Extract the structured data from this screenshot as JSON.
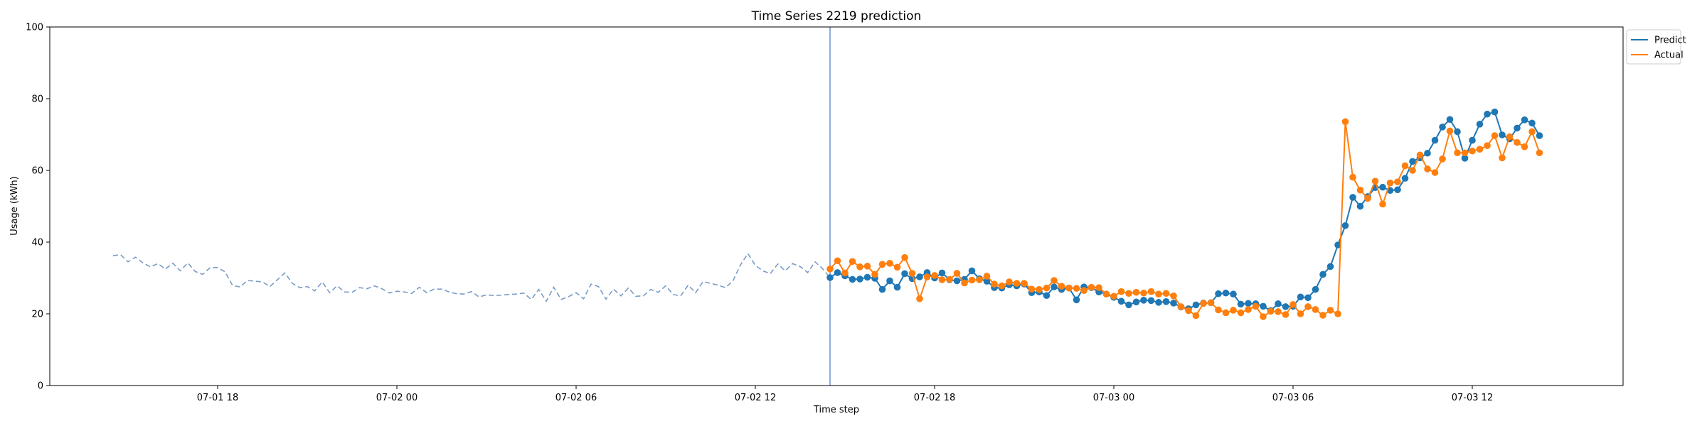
{
  "chart_data": {
    "type": "line",
    "title": "Time Series 2219 prediction",
    "xlabel": "Time step",
    "ylabel": "Usage (kWh)",
    "ylim": [
      0,
      100
    ],
    "yticks": [
      0,
      20,
      40,
      60,
      80,
      100
    ],
    "x_unit": "hours",
    "x_range": [
      -16.75,
      36.0
    ],
    "xticks": [
      {
        "value": 0,
        "label": "07-01 18"
      },
      {
        "value": 6,
        "label": "07-02 00"
      },
      {
        "value": 12,
        "label": "07-02 06"
      },
      {
        "value": 18,
        "label": "07-02 12"
      },
      {
        "value": 24,
        "label": "07-02 18"
      },
      {
        "value": 30,
        "label": "07-03 00"
      },
      {
        "value": 36,
        "label": "07-03 06"
      },
      {
        "value": 42,
        "label": "07-03 12"
      }
    ],
    "step_hours": 0.25,
    "forecast_start_hour": 20.5,
    "legend": {
      "placement": "upper right outside",
      "entries": [
        "Predict",
        "Actual"
      ]
    },
    "colors": {
      "predict": "#1f77b4",
      "actual": "#ff7f0e",
      "history": "#7a9cc6",
      "divider": "#6a8fcb"
    },
    "history_values": [
      36.2,
      36.5,
      34.5,
      35.8,
      34.2,
      33.1,
      34.0,
      32.5,
      34.1,
      32.0,
      34.2,
      31.8,
      31.0,
      32.9,
      32.9,
      31.7,
      27.9,
      27.5,
      29.3,
      29.1,
      28.9,
      27.6,
      29.5,
      31.4,
      28.5,
      27.3,
      27.6,
      26.4,
      28.9,
      25.9,
      27.8,
      26.1,
      26.0,
      27.3,
      27.0,
      27.8,
      27.0,
      25.8,
      26.3,
      26.1,
      25.7,
      27.4,
      25.9,
      26.9,
      26.9,
      26.1,
      25.6,
      25.5,
      26.2,
      24.7,
      25.3,
      25.1,
      25.2,
      25.4,
      25.5,
      25.8,
      24.0,
      26.8,
      23.5,
      27.4,
      24.0,
      24.8,
      25.9,
      24.2,
      28.3,
      27.6,
      24.1,
      26.9,
      25.0,
      27.2,
      24.9,
      25.0,
      26.8,
      26.0,
      27.8,
      25.4,
      25.0,
      28.0,
      25.9,
      29.0,
      28.5,
      28.0,
      27.3,
      29.2,
      33.6,
      36.8,
      33.5,
      32.0,
      31.2,
      33.9,
      32.0,
      34.0,
      33.2,
      31.5,
      34.5,
      32.6
    ],
    "series": [
      {
        "name": "Predict",
        "values": [
          30.1,
          31.5,
          30.6,
          29.6,
          29.7,
          30.2,
          29.9,
          26.8,
          29.2,
          27.4,
          31.2,
          29.8,
          30.3,
          31.5,
          30.0,
          31.4,
          29.5,
          29.2,
          29.6,
          32.0,
          29.8,
          29.1,
          27.3,
          27.2,
          28.1,
          27.8,
          28.3,
          25.9,
          26.1,
          25.1,
          27.5,
          26.8,
          27.2,
          23.9,
          27.5,
          27.3,
          26.1,
          25.5,
          24.6,
          23.5,
          22.5,
          23.3,
          23.8,
          23.7,
          23.2,
          23.4,
          23.0,
          21.9,
          21.4,
          22.5,
          23.0,
          23.1,
          25.6,
          25.8,
          25.5,
          22.7,
          22.9,
          22.8,
          22.1,
          20.9,
          22.8,
          22.0,
          22.1,
          24.7,
          24.5,
          26.8,
          31.0,
          33.2,
          39.2,
          44.6,
          52.5,
          50.0,
          52.7,
          55.2,
          55.3,
          54.4,
          54.6,
          57.8,
          62.5,
          63.5,
          64.8,
          68.4,
          72.1,
          74.2,
          70.8,
          63.4,
          68.4,
          72.9,
          75.7,
          76.3,
          69.9,
          68.8,
          71.8,
          74.1,
          73.2,
          69.7
        ]
      },
      {
        "name": "Actual",
        "values": [
          32.5,
          34.8,
          31.4,
          34.6,
          33.1,
          33.3,
          31.0,
          33.8,
          34.1,
          33.0,
          35.7,
          31.3,
          24.2,
          30.3,
          30.7,
          29.5,
          29.6,
          31.3,
          28.6,
          29.4,
          29.5,
          30.5,
          28.3,
          27.8,
          28.9,
          28.5,
          28.5,
          26.9,
          26.8,
          27.2,
          29.3,
          27.7,
          27.2,
          27.1,
          26.5,
          27.4,
          27.3,
          25.5,
          24.9,
          26.2,
          25.7,
          26.0,
          25.8,
          26.2,
          25.5,
          25.7,
          25.0,
          22.0,
          20.9,
          19.5,
          22.9,
          23.1,
          21.1,
          20.3,
          21.0,
          20.3,
          21.2,
          22.1,
          19.2,
          20.7,
          20.6,
          19.8,
          22.6,
          20.0,
          22.0,
          21.2,
          19.6,
          21.0,
          20.0,
          73.6,
          58.1,
          54.5,
          52.2,
          57.0,
          50.6,
          56.5,
          56.8,
          61.3,
          60.0,
          64.3,
          60.4,
          59.4,
          63.2,
          71.0,
          64.9,
          64.9,
          65.4,
          65.9,
          66.9,
          69.7,
          63.5,
          69.4,
          67.8,
          66.6,
          70.8,
          64.9
        ]
      }
    ]
  }
}
